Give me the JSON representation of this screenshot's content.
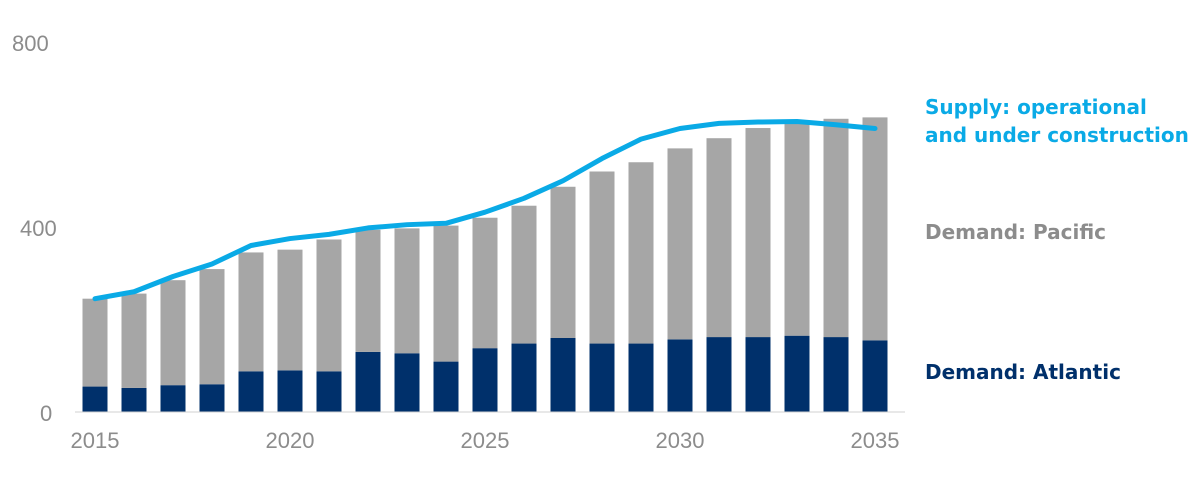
{
  "chart_data": {
    "type": "bar",
    "stacked": true,
    "x": [
      2015,
      2016,
      2017,
      2018,
      2019,
      2020,
      2021,
      2022,
      2023,
      2024,
      2025,
      2026,
      2027,
      2028,
      2029,
      2030,
      2031,
      2032,
      2033,
      2034,
      2035
    ],
    "x_tick_labels": [
      "2015",
      "2020",
      "2025",
      "2030",
      "2035"
    ],
    "y_tick_labels": [
      "0",
      "400",
      "800"
    ],
    "ylim": [
      0,
      800
    ],
    "grid": false,
    "series": [
      {
        "name": "Demand: Atlantic",
        "type": "bar",
        "color": "#00306b",
        "values": [
          55,
          52,
          58,
          60,
          88,
          90,
          88,
          130,
          127,
          109,
          138,
          148,
          160,
          148,
          148,
          157,
          162,
          162,
          165,
          162,
          155
        ]
      },
      {
        "name": "Demand: Pacific",
        "type": "bar",
        "color": "#a6a6a6",
        "values": [
          190,
          204,
          227,
          249,
          257,
          261,
          285,
          264,
          270,
          294,
          282,
          298,
          327,
          372,
          392,
          413,
          430,
          452,
          462,
          472,
          482
        ]
      },
      {
        "name": "Supply: operational and under construction",
        "type": "line",
        "color": "#0aaae6",
        "values": [
          245,
          260,
          293,
          320,
          360,
          375,
          384,
          398,
          405,
          408,
          432,
          462,
          500,
          548,
          590,
          613,
          624,
          627,
          628,
          621,
          613
        ]
      }
    ],
    "legend": {
      "placement": "right",
      "supply_line1": "Supply: operational",
      "supply_line2": "and under construction",
      "pacific": "Demand: Pacific",
      "atlantic": "Demand: Atlantic"
    }
  }
}
